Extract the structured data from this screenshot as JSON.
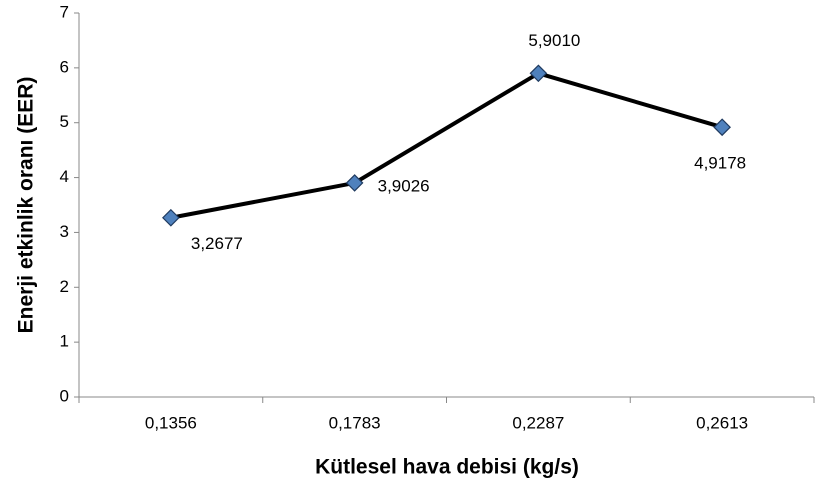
{
  "chart_data": {
    "type": "line",
    "x_label": "Kütlesel hava debisi (kg/s)",
    "y_label": "Enerji etkinlik oranı (EER)",
    "categories": [
      "0,1356",
      "0,1783",
      "0,2287",
      "0,2613"
    ],
    "values": [
      3.2677,
      3.9026,
      5.901,
      4.9178
    ],
    "value_labels": [
      "3,2677",
      "3,9026",
      "5,9010",
      "4,9178"
    ],
    "color": "#000000",
    "marker_color": "#4f81bd",
    "ylim": [
      0,
      7
    ],
    "yticks": [
      0,
      1,
      2,
      3,
      4,
      5,
      6,
      7
    ],
    "grid": false
  }
}
